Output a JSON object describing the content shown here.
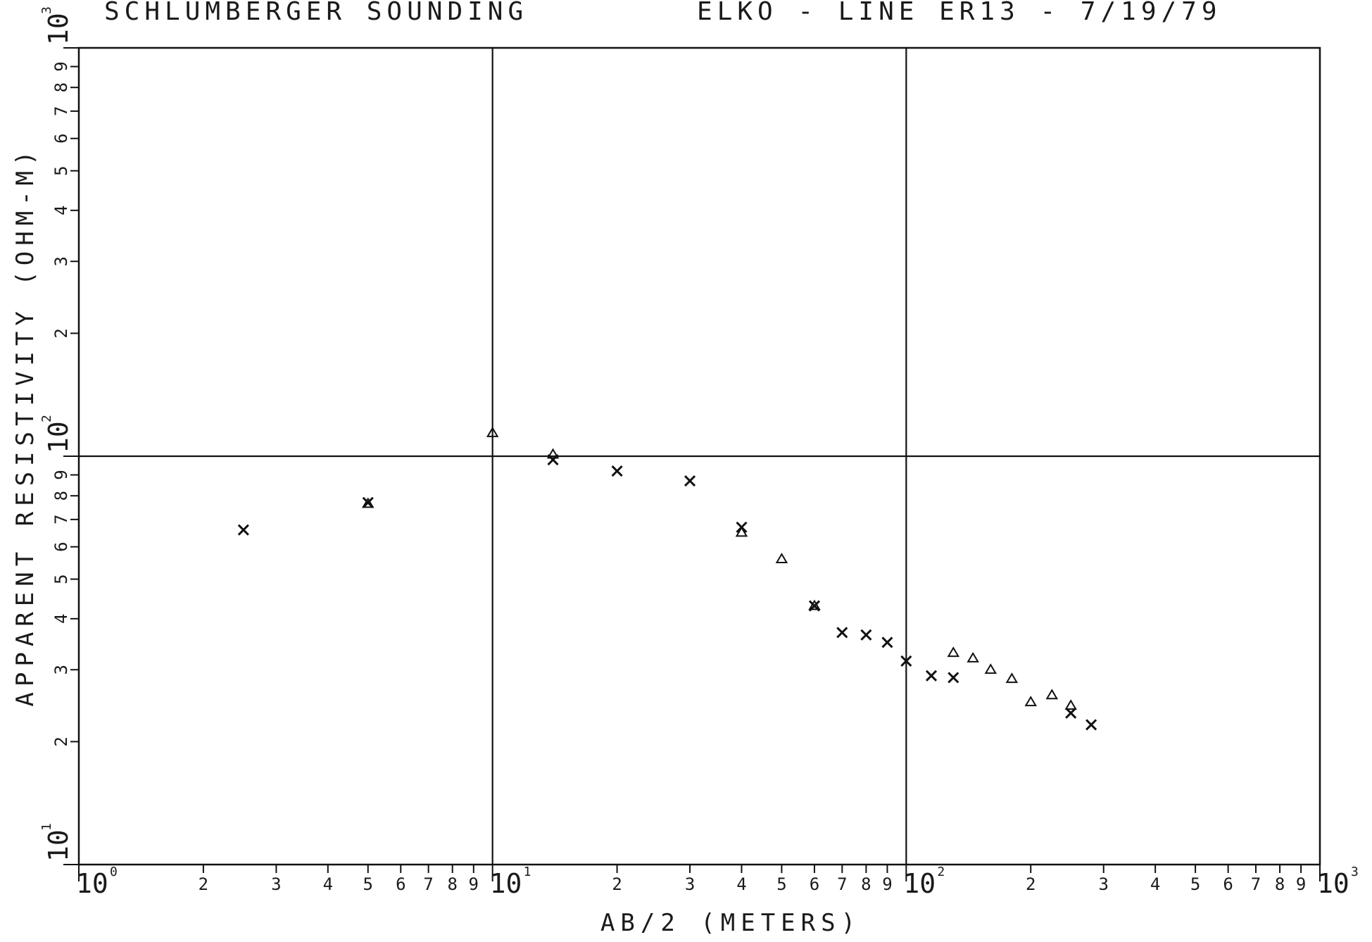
{
  "chart_data": {
    "type": "scatter",
    "title_left": "SCHLUMBERGER SOUNDING",
    "title_right": "ELKO - LINE ER13 - 7/19/79",
    "xlabel": "AB/2 (METERS)",
    "ylabel": "APPARENT RESISTIVITY (OHM-M)",
    "xscale": "log",
    "yscale": "log",
    "xlim": [
      1,
      1000
    ],
    "ylim": [
      10,
      1000
    ],
    "grid": "decades",
    "x_decade_labels": [
      {
        "base": "10",
        "exp": "0"
      },
      {
        "base": "10",
        "exp": "1"
      },
      {
        "base": "10",
        "exp": "2"
      },
      {
        "base": "10",
        "exp": "3"
      }
    ],
    "y_decade_labels": [
      {
        "base": "10",
        "exp": "1"
      },
      {
        "base": "10",
        "exp": "2"
      },
      {
        "base": "10",
        "exp": "3"
      }
    ],
    "minor_tick_labels": [
      "2",
      "3",
      "4",
      "5",
      "6",
      "7",
      "8",
      "9"
    ],
    "series": [
      {
        "marker": "x",
        "points": [
          {
            "x": 2.5,
            "y": 66
          },
          {
            "x": 5,
            "y": 77
          },
          {
            "x": 14,
            "y": 98
          },
          {
            "x": 20,
            "y": 92
          },
          {
            "x": 30,
            "y": 87
          },
          {
            "x": 40,
            "y": 67
          },
          {
            "x": 60,
            "y": 43
          },
          {
            "x": 70,
            "y": 37
          },
          {
            "x": 80,
            "y": 36.5
          },
          {
            "x": 90,
            "y": 35
          },
          {
            "x": 100,
            "y": 31.5
          },
          {
            "x": 115,
            "y": 29
          },
          {
            "x": 130,
            "y": 28.7
          },
          {
            "x": 250,
            "y": 23.5
          },
          {
            "x": 280,
            "y": 22
          }
        ]
      },
      {
        "marker": "triangle",
        "points": [
          {
            "x": 5,
            "y": 76.5
          },
          {
            "x": 10,
            "y": 114
          },
          {
            "x": 14,
            "y": 101
          },
          {
            "x": 40,
            "y": 65
          },
          {
            "x": 50,
            "y": 56
          },
          {
            "x": 60,
            "y": 43
          },
          {
            "x": 130,
            "y": 33
          },
          {
            "x": 145,
            "y": 32
          },
          {
            "x": 160,
            "y": 30
          },
          {
            "x": 180,
            "y": 28.5
          },
          {
            "x": 200,
            "y": 25
          },
          {
            "x": 225,
            "y": 26
          },
          {
            "x": 250,
            "y": 24.5
          }
        ]
      }
    ]
  }
}
